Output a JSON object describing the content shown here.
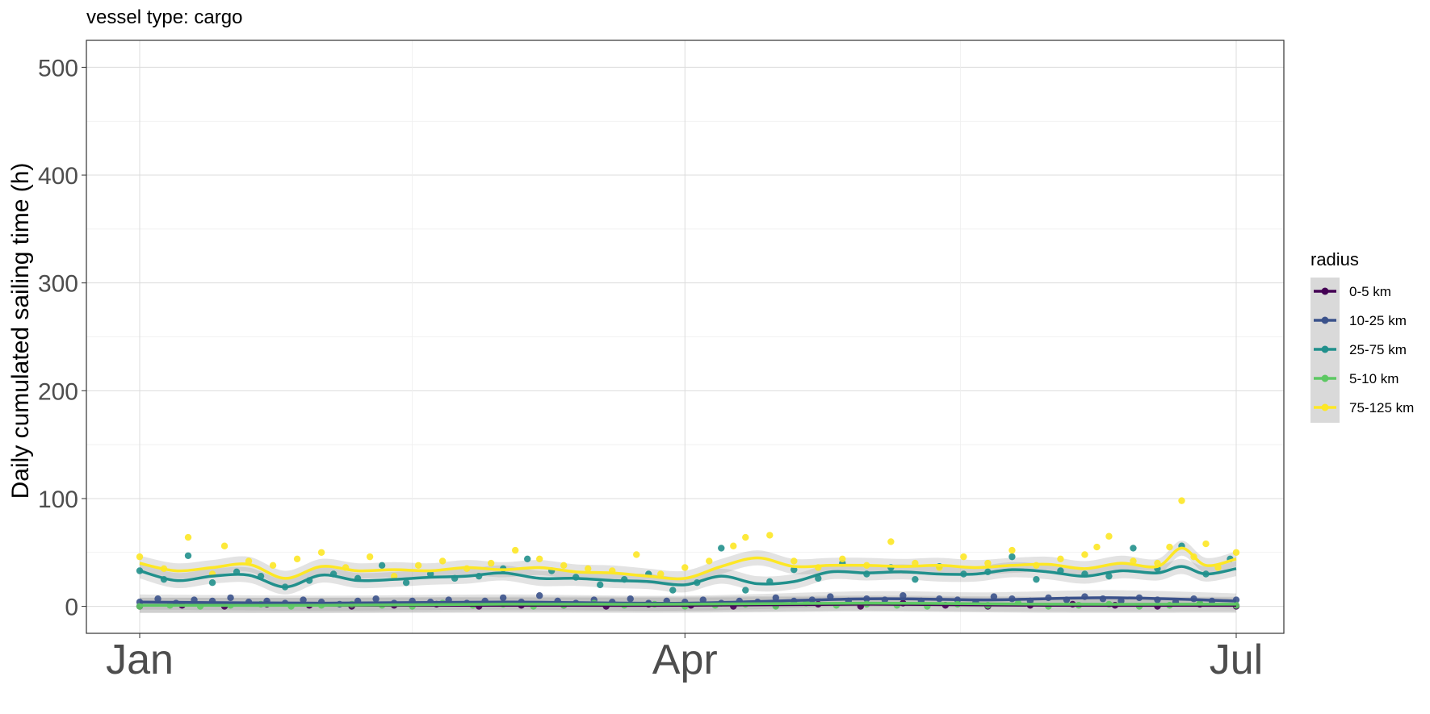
{
  "chart_data": {
    "type": "scatter",
    "subtitle": "vessel type: cargo",
    "ylabel": "Daily cumulated sailing time (h)",
    "xlabel": "",
    "x_domain": [
      "2022-01-01",
      "2022-07-01"
    ],
    "x_ticks": [
      "Jan",
      "Apr",
      "Jul"
    ],
    "ylim": [
      -25,
      525
    ],
    "y_ticks": [
      0,
      100,
      200,
      300,
      400,
      500
    ],
    "grid": true,
    "legend_title": "radius",
    "legend_position": "right",
    "series": [
      {
        "name": "0-5 km",
        "color": "#440154",
        "smooth": [
          [
            0,
            1
          ],
          [
            30,
            1
          ],
          [
            60,
            1
          ],
          [
            90,
            1
          ],
          [
            120,
            2
          ],
          [
            150,
            1
          ],
          [
            181,
            1
          ]
        ],
        "points": [
          [
            0,
            0
          ],
          [
            7,
            1
          ],
          [
            14,
            0
          ],
          [
            21,
            2
          ],
          [
            28,
            1
          ],
          [
            35,
            0
          ],
          [
            42,
            1
          ],
          [
            49,
            2
          ],
          [
            56,
            0
          ],
          [
            63,
            1
          ],
          [
            70,
            1
          ],
          [
            77,
            0
          ],
          [
            84,
            2
          ],
          [
            91,
            1
          ],
          [
            98,
            0
          ],
          [
            105,
            1
          ],
          [
            112,
            2
          ],
          [
            119,
            0
          ],
          [
            126,
            3
          ],
          [
            133,
            1
          ],
          [
            140,
            0
          ],
          [
            147,
            1
          ],
          [
            154,
            2
          ],
          [
            161,
            1
          ],
          [
            168,
            0
          ],
          [
            175,
            2
          ],
          [
            181,
            0
          ]
        ]
      },
      {
        "name": "10-25 km",
        "color": "#3b528b",
        "smooth": [
          [
            0,
            4
          ],
          [
            30,
            3
          ],
          [
            60,
            4
          ],
          [
            90,
            3
          ],
          [
            120,
            7
          ],
          [
            140,
            6
          ],
          [
            160,
            8
          ],
          [
            181,
            5
          ]
        ],
        "points": [
          [
            0,
            4
          ],
          [
            3,
            7
          ],
          [
            6,
            3
          ],
          [
            9,
            6
          ],
          [
            12,
            5
          ],
          [
            15,
            8
          ],
          [
            18,
            4
          ],
          [
            21,
            5
          ],
          [
            24,
            3
          ],
          [
            27,
            6
          ],
          [
            30,
            4
          ],
          [
            33,
            2
          ],
          [
            36,
            5
          ],
          [
            39,
            7
          ],
          [
            42,
            3
          ],
          [
            45,
            5
          ],
          [
            48,
            4
          ],
          [
            51,
            6
          ],
          [
            54,
            3
          ],
          [
            57,
            5
          ],
          [
            60,
            8
          ],
          [
            63,
            4
          ],
          [
            66,
            10
          ],
          [
            69,
            5
          ],
          [
            72,
            3
          ],
          [
            75,
            6
          ],
          [
            78,
            4
          ],
          [
            81,
            7
          ],
          [
            84,
            3
          ],
          [
            87,
            5
          ],
          [
            90,
            4
          ],
          [
            93,
            6
          ],
          [
            96,
            3
          ],
          [
            99,
            5
          ],
          [
            102,
            4
          ],
          [
            105,
            8
          ],
          [
            108,
            5
          ],
          [
            111,
            6
          ],
          [
            114,
            9
          ],
          [
            117,
            5
          ],
          [
            120,
            7
          ],
          [
            123,
            6
          ],
          [
            126,
            10
          ],
          [
            129,
            5
          ],
          [
            132,
            7
          ],
          [
            135,
            6
          ],
          [
            138,
            4
          ],
          [
            141,
            9
          ],
          [
            144,
            7
          ],
          [
            147,
            5
          ],
          [
            150,
            8
          ],
          [
            153,
            6
          ],
          [
            156,
            9
          ],
          [
            159,
            7
          ],
          [
            162,
            5
          ],
          [
            165,
            8
          ],
          [
            168,
            6
          ],
          [
            171,
            4
          ],
          [
            174,
            7
          ],
          [
            177,
            5
          ],
          [
            181,
            6
          ]
        ]
      },
      {
        "name": "25-75 km",
        "color": "#21908c",
        "smooth": [
          [
            0,
            33
          ],
          [
            6,
            24
          ],
          [
            12,
            28
          ],
          [
            18,
            29
          ],
          [
            24,
            18
          ],
          [
            30,
            29
          ],
          [
            36,
            24
          ],
          [
            42,
            25
          ],
          [
            48,
            27
          ],
          [
            54,
            28
          ],
          [
            60,
            31
          ],
          [
            66,
            26
          ],
          [
            72,
            26
          ],
          [
            78,
            24
          ],
          [
            84,
            23
          ],
          [
            90,
            20
          ],
          [
            96,
            28
          ],
          [
            102,
            21
          ],
          [
            108,
            23
          ],
          [
            114,
            32
          ],
          [
            120,
            31
          ],
          [
            126,
            32
          ],
          [
            132,
            30
          ],
          [
            138,
            30
          ],
          [
            144,
            34
          ],
          [
            150,
            32
          ],
          [
            156,
            28
          ],
          [
            162,
            33
          ],
          [
            168,
            31
          ],
          [
            172,
            37
          ],
          [
            176,
            30
          ],
          [
            181,
            35
          ]
        ],
        "points": [
          [
            0,
            33
          ],
          [
            4,
            25
          ],
          [
            8,
            47
          ],
          [
            12,
            22
          ],
          [
            16,
            32
          ],
          [
            20,
            28
          ],
          [
            24,
            18
          ],
          [
            28,
            24
          ],
          [
            32,
            30
          ],
          [
            36,
            26
          ],
          [
            40,
            38
          ],
          [
            44,
            22
          ],
          [
            48,
            30
          ],
          [
            52,
            26
          ],
          [
            56,
            28
          ],
          [
            60,
            35
          ],
          [
            64,
            44
          ],
          [
            68,
            33
          ],
          [
            72,
            27
          ],
          [
            76,
            20
          ],
          [
            80,
            25
          ],
          [
            84,
            30
          ],
          [
            88,
            15
          ],
          [
            92,
            22
          ],
          [
            96,
            54
          ],
          [
            100,
            15
          ],
          [
            104,
            23
          ],
          [
            108,
            34
          ],
          [
            112,
            26
          ],
          [
            116,
            40
          ],
          [
            120,
            30
          ],
          [
            124,
            36
          ],
          [
            128,
            25
          ],
          [
            132,
            37
          ],
          [
            136,
            30
          ],
          [
            140,
            32
          ],
          [
            144,
            46
          ],
          [
            148,
            25
          ],
          [
            152,
            33
          ],
          [
            156,
            30
          ],
          [
            160,
            28
          ],
          [
            164,
            54
          ],
          [
            168,
            35
          ],
          [
            172,
            56
          ],
          [
            176,
            30
          ],
          [
            180,
            44
          ]
        ]
      },
      {
        "name": "5-10 km",
        "color": "#5dc863",
        "smooth": [
          [
            0,
            1
          ],
          [
            30,
            1
          ],
          [
            60,
            2
          ],
          [
            90,
            2
          ],
          [
            120,
            3
          ],
          [
            150,
            2
          ],
          [
            181,
            2
          ]
        ],
        "points": [
          [
            0,
            0
          ],
          [
            5,
            1
          ],
          [
            10,
            0
          ],
          [
            15,
            1
          ],
          [
            20,
            2
          ],
          [
            25,
            0
          ],
          [
            30,
            1
          ],
          [
            35,
            2
          ],
          [
            40,
            1
          ],
          [
            45,
            0
          ],
          [
            50,
            3
          ],
          [
            55,
            1
          ],
          [
            60,
            2
          ],
          [
            65,
            0
          ],
          [
            70,
            1
          ],
          [
            75,
            3
          ],
          [
            80,
            1
          ],
          [
            85,
            2
          ],
          [
            90,
            0
          ],
          [
            95,
            1
          ],
          [
            100,
            2
          ],
          [
            105,
            0
          ],
          [
            110,
            3
          ],
          [
            115,
            1
          ],
          [
            120,
            2
          ],
          [
            125,
            1
          ],
          [
            130,
            0
          ],
          [
            135,
            2
          ],
          [
            140,
            1
          ],
          [
            145,
            3
          ],
          [
            150,
            0
          ],
          [
            155,
            1
          ],
          [
            160,
            2
          ],
          [
            165,
            0
          ],
          [
            170,
            1
          ],
          [
            175,
            3
          ],
          [
            181,
            1
          ]
        ]
      },
      {
        "name": "75-125 km",
        "color": "#fde725",
        "smooth": [
          [
            0,
            40
          ],
          [
            6,
            33
          ],
          [
            12,
            36
          ],
          [
            18,
            39
          ],
          [
            24,
            26
          ],
          [
            30,
            37
          ],
          [
            36,
            33
          ],
          [
            42,
            34
          ],
          [
            48,
            33
          ],
          [
            54,
            36
          ],
          [
            60,
            34
          ],
          [
            66,
            36
          ],
          [
            72,
            32
          ],
          [
            78,
            31
          ],
          [
            84,
            28
          ],
          [
            90,
            26
          ],
          [
            96,
            37
          ],
          [
            102,
            45
          ],
          [
            108,
            37
          ],
          [
            114,
            38
          ],
          [
            120,
            38
          ],
          [
            126,
            37
          ],
          [
            132,
            38
          ],
          [
            138,
            36
          ],
          [
            144,
            38
          ],
          [
            150,
            39
          ],
          [
            156,
            35
          ],
          [
            162,
            40
          ],
          [
            168,
            37
          ],
          [
            172,
            54
          ],
          [
            176,
            38
          ],
          [
            181,
            44
          ]
        ],
        "points": [
          [
            0,
            46
          ],
          [
            4,
            35
          ],
          [
            8,
            64
          ],
          [
            12,
            30
          ],
          [
            14,
            56
          ],
          [
            18,
            42
          ],
          [
            22,
            38
          ],
          [
            26,
            44
          ],
          [
            30,
            50
          ],
          [
            34,
            36
          ],
          [
            38,
            46
          ],
          [
            42,
            28
          ],
          [
            46,
            38
          ],
          [
            50,
            42
          ],
          [
            54,
            35
          ],
          [
            58,
            40
          ],
          [
            62,
            52
          ],
          [
            66,
            44
          ],
          [
            70,
            38
          ],
          [
            74,
            35
          ],
          [
            78,
            33
          ],
          [
            82,
            48
          ],
          [
            86,
            30
          ],
          [
            90,
            36
          ],
          [
            94,
            42
          ],
          [
            98,
            56
          ],
          [
            100,
            64
          ],
          [
            104,
            66
          ],
          [
            108,
            42
          ],
          [
            112,
            36
          ],
          [
            116,
            44
          ],
          [
            120,
            38
          ],
          [
            124,
            60
          ],
          [
            128,
            40
          ],
          [
            132,
            36
          ],
          [
            136,
            46
          ],
          [
            140,
            40
          ],
          [
            144,
            52
          ],
          [
            148,
            38
          ],
          [
            152,
            44
          ],
          [
            156,
            48
          ],
          [
            158,
            55
          ],
          [
            160,
            65
          ],
          [
            164,
            42
          ],
          [
            168,
            40
          ],
          [
            170,
            55
          ],
          [
            172,
            98
          ],
          [
            174,
            46
          ],
          [
            176,
            58
          ],
          [
            178,
            36
          ],
          [
            181,
            50
          ]
        ]
      }
    ]
  }
}
